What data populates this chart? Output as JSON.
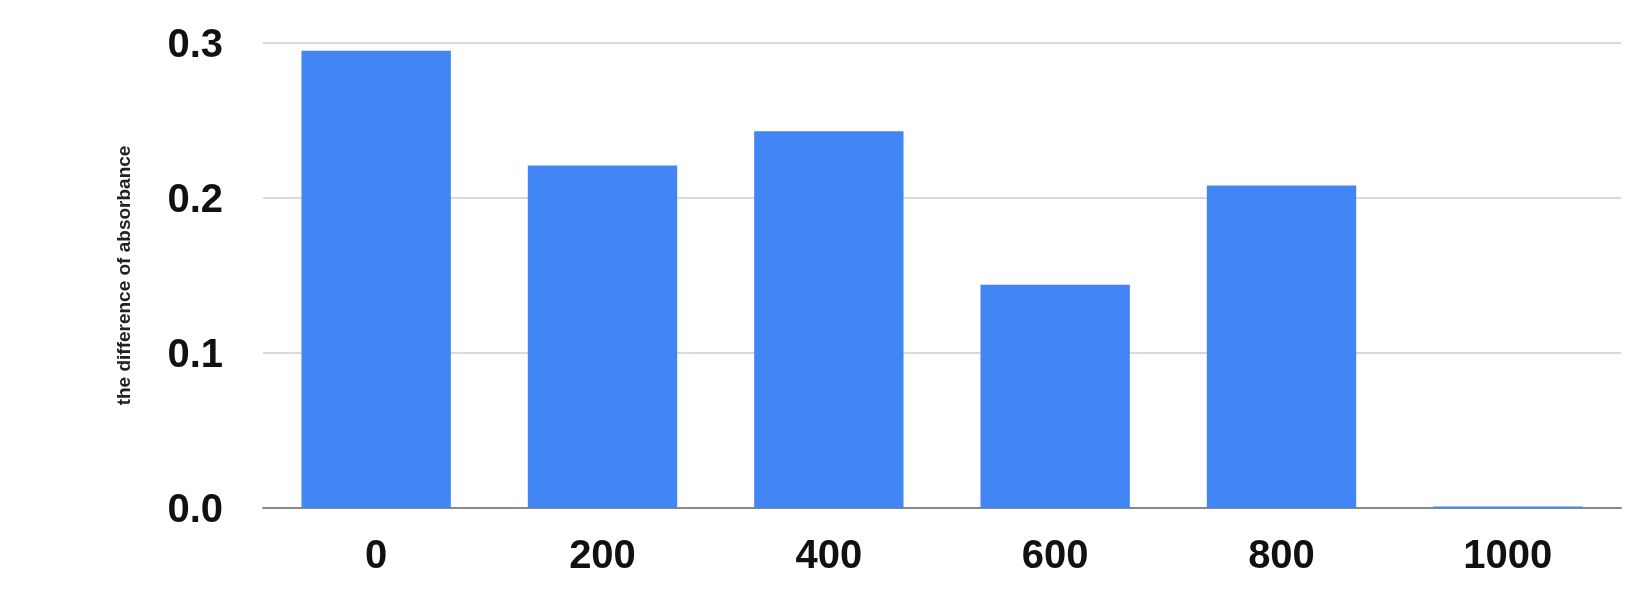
{
  "chart_data": {
    "type": "bar",
    "ylabel": "the difference of absorbance",
    "categories": [
      "0",
      "200",
      "400",
      "600",
      "800",
      "1000"
    ],
    "values": [
      0.295,
      0.221,
      0.243,
      0.144,
      0.208,
      0.001
    ],
    "color": "#4285f4",
    "ylim": [
      0,
      0.3
    ],
    "yticks": [
      {
        "value": 0,
        "label": "0.0"
      },
      0.1,
      0.2,
      0.3
    ],
    "grid": "y"
  }
}
